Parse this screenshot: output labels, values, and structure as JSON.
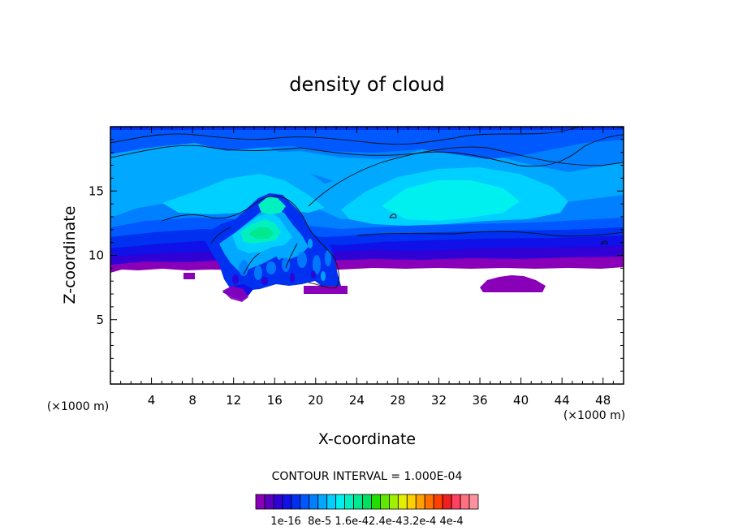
{
  "chart_data": {
    "type": "heatmap",
    "title": "density of cloud",
    "xlabel": "X-coordinate",
    "ylabel": "Z-coordinate",
    "x_unit": "(×1000 m)",
    "y_unit": "(×1000 m)",
    "xlim": [
      0,
      50
    ],
    "ylim": [
      0,
      20
    ],
    "x_ticks": [
      "4",
      "8",
      "12",
      "16",
      "20",
      "24",
      "28",
      "32",
      "36",
      "40",
      "44",
      "48"
    ],
    "y_ticks": [
      "5",
      "10",
      "15"
    ],
    "contour_interval_text": "CONTOUR INTERVAL = 1.000E-04",
    "colorbar_labels": [
      "1e-16",
      "8e-5",
      "1.6e-4",
      "2.4e-4",
      "3.2e-4",
      "4e-4"
    ],
    "colorbar_label_text": "1e-16  8e-5 1.6e-42.4e-43.2e-4 4e-4",
    "levels": [
      "1e-16",
      "2e-5",
      "4e-5",
      "6e-5",
      "8e-5",
      "1e-4",
      "1.2e-4",
      "1.4e-4",
      "1.6e-4",
      "1.8e-4",
      "2e-4",
      "2.2e-4",
      "2.4e-4",
      "2.6e-4",
      "2.8e-4",
      "3e-4",
      "3.2e-4",
      "3.4e-4",
      "3.6e-4",
      "3.8e-4",
      "4e-4"
    ],
    "colors": [
      "#8a00b8",
      "#5a00c0",
      "#3000d4",
      "#1010e8",
      "#0030f0",
      "#0058ff",
      "#0080ff",
      "#00a8ff",
      "#00d0ff",
      "#00f0f0",
      "#00f0c0",
      "#00e890",
      "#00e060",
      "#20e000",
      "#60e800",
      "#a0f000",
      "#e0f000",
      "#ffd000",
      "#ffa000",
      "#ff7000",
      "#ff4000",
      "#f02020",
      "#ff4060",
      "#ff7080",
      "#ff90a0"
    ],
    "regions": [
      {
        "name": "cloud layer base",
        "x": [
          0,
          50
        ],
        "z": [
          8.8,
          10.5
        ],
        "level": "1e-16"
      },
      {
        "name": "main cloud deck",
        "x": [
          0,
          50
        ],
        "z": [
          10,
          19.8
        ],
        "level": "8e-5"
      },
      {
        "name": "convective core",
        "x": [
          10,
          22
        ],
        "z": [
          6.5,
          15
        ],
        "level": "1.6e-4"
      },
      {
        "name": "isolated patch",
        "x": [
          36,
          42
        ],
        "z": [
          7.3,
          8.6
        ],
        "level": "1e-16"
      }
    ]
  }
}
